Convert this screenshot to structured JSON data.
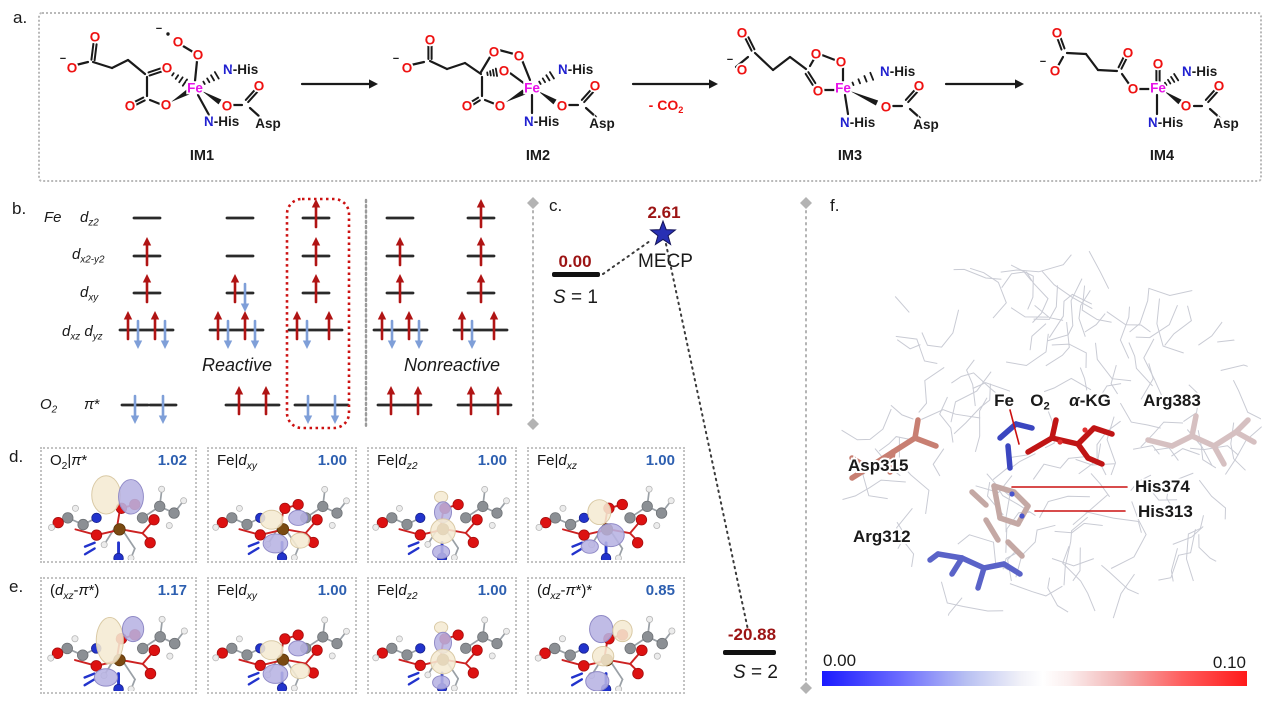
{
  "figure": {
    "panel_a": {
      "label": "a.",
      "intermediates": [
        "IM1",
        "IM2",
        "IM3",
        "IM4"
      ],
      "arrow_co2_parts": [
        {
          "t": "- CO"
        },
        {
          "t": "2",
          "sub": true
        }
      ],
      "atom_labels": {
        "o": "O",
        "n": "N",
        "fe": "Fe",
        "nhis": "N-His",
        "asp": "Asp",
        "minus": "−"
      }
    },
    "panel_b": {
      "label": "b.",
      "row_labels": {
        "fe": [
          {
            "t": "Fe",
            "i": true
          }
        ],
        "dz2": [
          {
            "t": "d",
            "i": true
          },
          {
            "t": "z2",
            "sub": true,
            "i": true
          }
        ],
        "dx2y2": [
          {
            "t": "d",
            "i": true
          },
          {
            "t": "x2-y2",
            "sub": true,
            "i": true
          }
        ],
        "dxy": [
          {
            "t": "d",
            "i": true
          },
          {
            "t": "xy",
            "sub": true,
            "i": true
          }
        ],
        "dxzdyz": [
          {
            "t": "d",
            "i": true
          },
          {
            "t": "xz",
            "sub": true,
            "i": true
          },
          {
            "t": " "
          },
          {
            "t": "d",
            "i": true
          },
          {
            "t": "yz",
            "sub": true,
            "i": true
          }
        ],
        "o2": [
          {
            "t": "O",
            "i": true
          },
          {
            "t": "2",
            "sub": true,
            "i": true
          }
        ],
        "pistar": [
          {
            "t": "π",
            "i": true
          },
          {
            "t": "*"
          }
        ]
      },
      "group_labels": {
        "reactive": "Reactive",
        "nonreactive": "Nonreactive"
      },
      "columns": [
        {
          "dz2": "",
          "dx2y2": "up",
          "dxy": "up",
          "dxzdyz": [
            "updown",
            "updown"
          ],
          "pi": [
            "down",
            "down"
          ],
          "boxed": false,
          "group": "reactive"
        },
        {
          "dz2": "",
          "dx2y2": "",
          "dxy": "updown",
          "dxzdyz": [
            "updown",
            "updown"
          ],
          "pi": [
            "up",
            "up"
          ],
          "boxed": false,
          "group": "reactive"
        },
        {
          "dz2": "up",
          "dx2y2": "up",
          "dxy": "up",
          "dxzdyz": [
            "updown",
            "up"
          ],
          "pi": [
            "down",
            "down"
          ],
          "boxed": true,
          "group": "reactive"
        },
        {
          "dz2": "",
          "dx2y2": "up",
          "dxy": "up",
          "dxzdyz": [
            "updown",
            "updown"
          ],
          "pi": [
            "up",
            "up"
          ],
          "boxed": false,
          "group": "nonreactive"
        },
        {
          "dz2": "up",
          "dx2y2": "up",
          "dxy": "up",
          "dxzdyz": [
            "updown",
            "up"
          ],
          "pi": [
            "up",
            "up"
          ],
          "boxed": false,
          "group": "nonreactive"
        }
      ]
    },
    "panel_c": {
      "label": "c.",
      "s1": {
        "energy": "0.00",
        "state_parts": [
          {
            "t": "S",
            "i": true
          },
          {
            "t": " = 1"
          }
        ]
      },
      "mecp": {
        "energy": "2.61",
        "label": "MECP"
      },
      "s2": {
        "energy": "-20.88",
        "state_parts": [
          {
            "t": "S",
            "i": true
          },
          {
            "t": " = 2"
          }
        ]
      },
      "energies_kcal": {
        "s1": 0.0,
        "mecp": 2.61,
        "s2": -20.88
      }
    },
    "panel_d": {
      "label": "d.",
      "boxes": [
        {
          "title_parts": [
            {
              "t": "O"
            },
            {
              "t": "2",
              "sub": true
            },
            {
              "t": "|"
            },
            {
              "t": "π",
              "i": true
            },
            {
              "t": "*"
            }
          ],
          "value": "1.02",
          "orbital": "pi"
        },
        {
          "title_parts": [
            {
              "t": "Fe|"
            },
            {
              "t": "d",
              "i": true
            },
            {
              "t": "xy",
              "sub": true,
              "i": true
            }
          ],
          "value": "1.00",
          "orbital": "dxy"
        },
        {
          "title_parts": [
            {
              "t": "Fe|"
            },
            {
              "t": "d",
              "i": true
            },
            {
              "t": "z2",
              "sub": true,
              "i": true
            }
          ],
          "value": "1.00",
          "orbital": "dz2"
        },
        {
          "title_parts": [
            {
              "t": "Fe|"
            },
            {
              "t": "d",
              "i": true
            },
            {
              "t": "xz",
              "sub": true,
              "i": true
            }
          ],
          "value": "1.00",
          "orbital": "dxz"
        }
      ]
    },
    "panel_e": {
      "label": "e.",
      "boxes": [
        {
          "title_parts": [
            {
              "t": "("
            },
            {
              "t": "d",
              "i": true
            },
            {
              "t": "xz",
              "sub": true,
              "i": true
            },
            {
              "t": "-"
            },
            {
              "t": "π",
              "i": true
            },
            {
              "t": "*)"
            }
          ],
          "value": "1.17",
          "orbital": "dxzpi"
        },
        {
          "title_parts": [
            {
              "t": "Fe|"
            },
            {
              "t": "d",
              "i": true
            },
            {
              "t": "xy",
              "sub": true,
              "i": true
            }
          ],
          "value": "1.00",
          "orbital": "dxy"
        },
        {
          "title_parts": [
            {
              "t": "Fe|"
            },
            {
              "t": "d",
              "i": true
            },
            {
              "t": "z2",
              "sub": true,
              "i": true
            }
          ],
          "value": "1.00",
          "orbital": "dz2"
        },
        {
          "title_parts": [
            {
              "t": "("
            },
            {
              "t": "d",
              "i": true
            },
            {
              "t": "xz",
              "sub": true,
              "i": true
            },
            {
              "t": "-"
            },
            {
              "t": "π",
              "i": true
            },
            {
              "t": "*)*"
            }
          ],
          "value": "0.85",
          "orbital": "dxzpistar"
        }
      ]
    },
    "panel_f": {
      "label": "f.",
      "site_labels": [
        {
          "id": "fe",
          "parts": [
            {
              "t": "Fe"
            }
          ]
        },
        {
          "id": "o2",
          "parts": [
            {
              "t": "O"
            },
            {
              "t": "2",
              "sub": true
            }
          ]
        },
        {
          "id": "akg",
          "parts": [
            {
              "t": "α",
              "i": true
            },
            {
              "t": "-KG"
            }
          ]
        },
        {
          "id": "arg383",
          "parts": [
            {
              "t": "Arg383"
            }
          ]
        },
        {
          "id": "asp315",
          "parts": [
            {
              "t": "Asp315"
            }
          ]
        },
        {
          "id": "his374",
          "parts": [
            {
              "t": "His374"
            }
          ]
        },
        {
          "id": "his313",
          "parts": [
            {
              "t": "His313"
            }
          ]
        },
        {
          "id": "arg312",
          "parts": [
            {
              "t": "Arg312"
            }
          ]
        }
      ],
      "colorbar": {
        "min": "0.00",
        "max": "0.10"
      }
    }
  },
  "colors": {
    "spin_up": "#b01414",
    "spin_down": "#7f9fd8",
    "level_line": "#2a2a2a",
    "energy_text": "#9c1414",
    "occupation_value": "#2d5fb0",
    "highlight_box": "#cc1111",
    "fe_label": "#e812e8",
    "n_label": "#2020d0",
    "o_label": "#ee1111",
    "co2_label": "#ee1111",
    "star": "#2830b4",
    "divider": "#b3b3b3",
    "colorbar_min": "#1a1aff",
    "colorbar_max": "#ff1a1a"
  }
}
